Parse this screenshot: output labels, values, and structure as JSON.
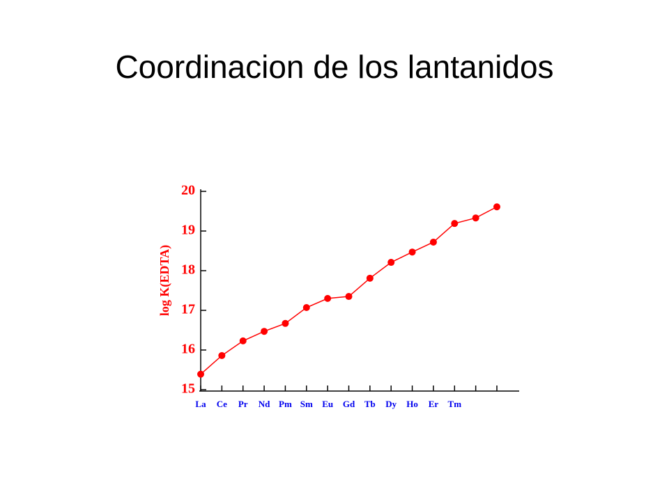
{
  "chart_data": {
    "type": "line",
    "title": "Coordinacion de los lantanidos",
    "y_label": "log K(EDTA)",
    "categories": [
      "La",
      "Ce",
      "Pr",
      "Nd",
      "Pm",
      "Sm",
      "Eu",
      "Gd",
      "Tb",
      "Dy",
      "Ho",
      "Er",
      "Tm",
      null,
      null
    ],
    "values": [
      15.39,
      15.86,
      16.23,
      16.47,
      16.67,
      17.07,
      17.3,
      17.35,
      17.81,
      18.21,
      18.47,
      18.72,
      19.19,
      19.33,
      19.61
    ],
    "color": "#ff0000",
    "label_color": "#0000ee",
    "ylim": [
      15,
      20
    ],
    "yticks": [
      15,
      16,
      17,
      18,
      19,
      20
    ]
  }
}
